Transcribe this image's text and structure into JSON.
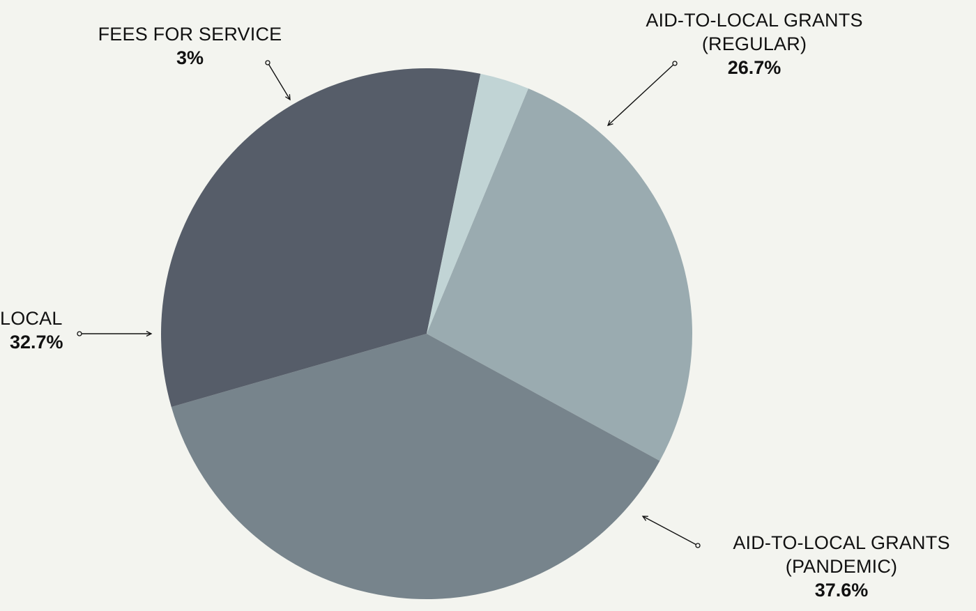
{
  "chart_data": {
    "type": "pie",
    "title": "",
    "slices": [
      {
        "label_line1": "AID-TO-LOCAL GRANTS",
        "label_line2": "(REGULAR)",
        "percent_text": "26.7%",
        "value": 26.7,
        "color": "#9aabb0"
      },
      {
        "label_line1": "AID-TO-LOCAL GRANTS",
        "label_line2": "(PANDEMIC)",
        "percent_text": "37.6%",
        "value": 37.6,
        "color": "#77848c"
      },
      {
        "label_line1": "LOCAL",
        "label_line2": "",
        "percent_text": "32.7%",
        "value": 32.7,
        "color": "#565d69"
      },
      {
        "label_line1": "FEES FOR SERVICE",
        "label_line2": "",
        "percent_text": "3%",
        "value": 3.0,
        "color": "#c1d4d5"
      }
    ],
    "legend": "callout labels with arrows around the pie",
    "background_color": "#f3f4ef"
  }
}
